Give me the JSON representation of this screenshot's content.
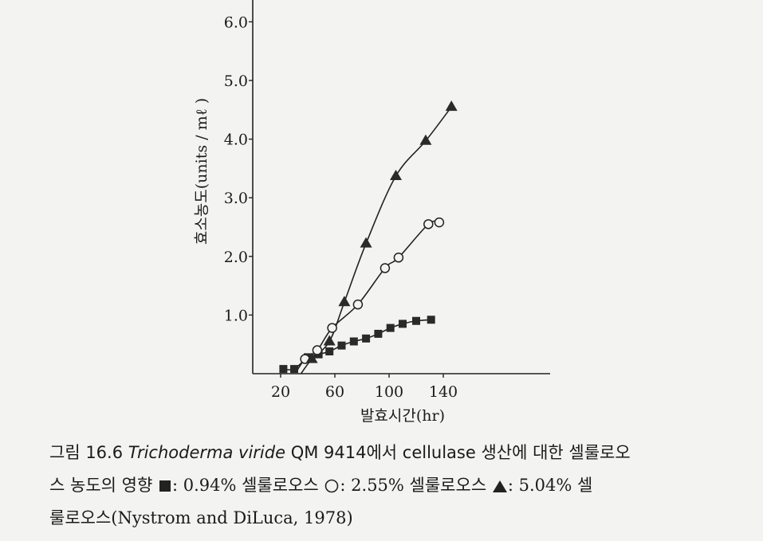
{
  "chart_data": {
    "type": "line",
    "xlabel": "발효시간(hr)",
    "ylabel": "효소농도(units / mℓ )",
    "x_ticks": [
      20,
      60,
      100,
      140
    ],
    "y_ticks": [
      "1.0",
      "2.0",
      "3.0",
      "4.0",
      "5.0",
      "6.0"
    ],
    "xlim": [
      0,
      220
    ],
    "ylim": [
      0,
      6.5
    ],
    "grid": false,
    "series": [
      {
        "name": "0.94% 셀룰로오스",
        "marker": "square",
        "x": [
          22,
          30,
          40,
          48,
          56,
          65,
          74,
          83,
          92,
          101,
          110,
          120,
          131
        ],
        "y": [
          0.08,
          0.08,
          0.28,
          0.33,
          0.38,
          0.48,
          0.55,
          0.6,
          0.68,
          0.78,
          0.85,
          0.9,
          0.92
        ]
      },
      {
        "name": "2.55% 셀룰로오스",
        "marker": "circle",
        "x": [
          38,
          47,
          58,
          77,
          97,
          107,
          129,
          137
        ],
        "y": [
          0.25,
          0.4,
          0.78,
          1.18,
          1.8,
          1.98,
          2.55,
          2.58
        ]
      },
      {
        "name": "5.04% 셀룰로오스",
        "marker": "triangle",
        "x": [
          43,
          56,
          67,
          83,
          105,
          127,
          146
        ],
        "y": [
          0.25,
          0.55,
          1.22,
          2.22,
          3.37,
          3.97,
          4.55
        ]
      }
    ]
  },
  "caption": {
    "fig_number": "그림 16.6",
    "species": "Trichoderma viride",
    "line1_rest": "QM 9414에서 cellulase 생산에 대한 셀룰로오",
    "line2_lead": "스 농도의 영향",
    "legend_sq": ": 0.94% 셀룰로오스",
    "legend_ci": ": 2.55% 셀룰로오스",
    "legend_tr_a": ": 5.04% 셀",
    "line3_lead": "룰로오스",
    "citation": "(Nystrom and DiLuca, 1978)"
  }
}
